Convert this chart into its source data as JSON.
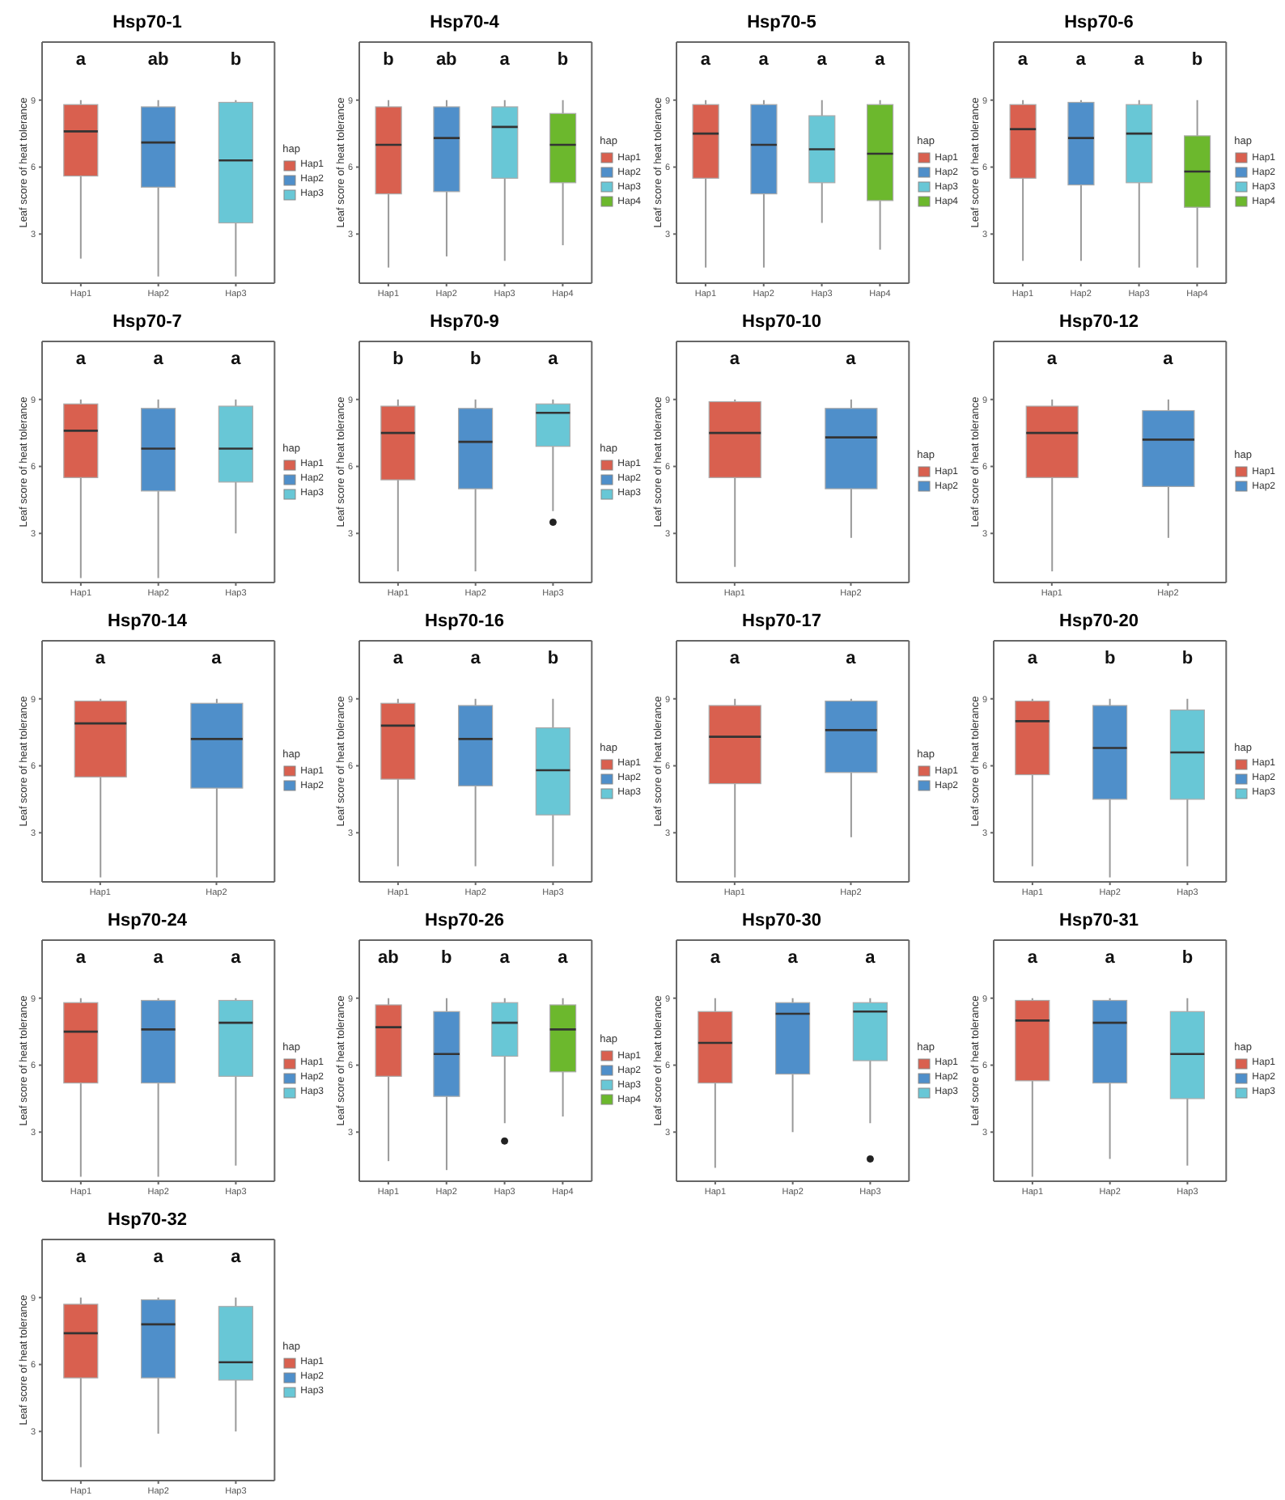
{
  "chart_data": [
    {
      "type": "box",
      "title": "Hsp70-1",
      "ylabel": "Leaf score of heat tolerance",
      "ylim": [
        0.8,
        11.6
      ],
      "yticks": [
        3,
        6,
        9
      ],
      "legend": "right",
      "legend_title": "hap",
      "categories": [
        "Hap1",
        "Hap2",
        "Hap3"
      ],
      "annotations": [
        "a",
        "ab",
        "b"
      ],
      "series": [
        {
          "name": "Hap1",
          "color": "#d9604f",
          "boxes": [
            {
              "low": 1.9,
              "q1": 5.6,
              "median": 7.6,
              "q3": 8.8,
              "high": 9
            },
            null,
            null
          ]
        },
        {
          "name": "Hap2",
          "color": "#4f8fca",
          "boxes": [
            null,
            {
              "low": 1.1,
              "q1": 5.1,
              "median": 7.1,
              "q3": 8.7,
              "high": 9
            },
            null
          ]
        },
        {
          "name": "Hap3",
          "color": "#68c7d6",
          "boxes": [
            null,
            null,
            {
              "low": 1.1,
              "q1": 3.5,
              "median": 6.3,
              "q3": 8.9,
              "high": 9
            }
          ]
        }
      ]
    },
    {
      "type": "box",
      "title": "Hsp70-4",
      "ylabel": "Leaf score of heat tolerance",
      "ylim": [
        0.8,
        11.6
      ],
      "yticks": [
        3,
        6,
        9
      ],
      "legend": "right",
      "legend_title": "hap",
      "categories": [
        "Hap1",
        "Hap2",
        "Hap3",
        "Hap4"
      ],
      "annotations": [
        "b",
        "ab",
        "a",
        "b"
      ],
      "series": [
        {
          "name": "Hap1",
          "color": "#d9604f",
          "boxes": [
            {
              "low": 1.5,
              "q1": 4.8,
              "median": 7.0,
              "q3": 8.7,
              "high": 9
            },
            null,
            null,
            null
          ]
        },
        {
          "name": "Hap2",
          "color": "#4f8fca",
          "boxes": [
            null,
            {
              "low": 2,
              "q1": 4.9,
              "median": 7.3,
              "q3": 8.7,
              "high": 9
            },
            null,
            null
          ]
        },
        {
          "name": "Hap3",
          "color": "#68c7d6",
          "boxes": [
            null,
            null,
            {
              "low": 1.8,
              "q1": 5.5,
              "median": 7.8,
              "q3": 8.7,
              "high": 9
            },
            null
          ]
        },
        {
          "name": "Hap4",
          "color": "#6cb82d",
          "boxes": [
            null,
            null,
            null,
            {
              "low": 2.5,
              "q1": 5.3,
              "median": 7.0,
              "q3": 8.4,
              "high": 9
            }
          ]
        }
      ]
    },
    {
      "type": "box",
      "title": "Hsp70-5",
      "ylabel": "Leaf score of heat tolerance",
      "ylim": [
        0.8,
        11.6
      ],
      "yticks": [
        3,
        6,
        9
      ],
      "legend": "right",
      "legend_title": "hap",
      "categories": [
        "Hap1",
        "Hap2",
        "Hap3",
        "Hap4"
      ],
      "annotations": [
        "a",
        "a",
        "a",
        "a"
      ],
      "series": [
        {
          "name": "Hap1",
          "color": "#d9604f",
          "boxes": [
            {
              "low": 1.5,
              "q1": 5.5,
              "median": 7.5,
              "q3": 8.8,
              "high": 9
            },
            null,
            null,
            null
          ]
        },
        {
          "name": "Hap2",
          "color": "#4f8fca",
          "boxes": [
            null,
            {
              "low": 1.5,
              "q1": 4.8,
              "median": 7.0,
              "q3": 8.8,
              "high": 9
            },
            null,
            null
          ]
        },
        {
          "name": "Hap3",
          "color": "#68c7d6",
          "boxes": [
            null,
            null,
            {
              "low": 3.5,
              "q1": 5.3,
              "median": 6.8,
              "q3": 8.3,
              "high": 9
            },
            null
          ]
        },
        {
          "name": "Hap4",
          "color": "#6cb82d",
          "boxes": [
            null,
            null,
            null,
            {
              "low": 2.3,
              "q1": 4.5,
              "median": 6.6,
              "q3": 8.8,
              "high": 9
            }
          ]
        }
      ]
    },
    {
      "type": "box",
      "title": "Hsp70-6",
      "ylabel": "Leaf score of heat tolerance",
      "ylim": [
        0.8,
        11.6
      ],
      "yticks": [
        3,
        6,
        9
      ],
      "legend": "right",
      "legend_title": "hap",
      "categories": [
        "Hap1",
        "Hap2",
        "Hap3",
        "Hap4"
      ],
      "annotations": [
        "a",
        "a",
        "a",
        "b"
      ],
      "series": [
        {
          "name": "Hap1",
          "color": "#d9604f",
          "boxes": [
            {
              "low": 1.8,
              "q1": 5.5,
              "median": 7.7,
              "q3": 8.8,
              "high": 9
            },
            null,
            null,
            null
          ]
        },
        {
          "name": "Hap2",
          "color": "#4f8fca",
          "boxes": [
            null,
            {
              "low": 1.8,
              "q1": 5.2,
              "median": 7.3,
              "q3": 8.9,
              "high": 9
            },
            null,
            null
          ]
        },
        {
          "name": "Hap3",
          "color": "#68c7d6",
          "boxes": [
            null,
            null,
            {
              "low": 1.5,
              "q1": 5.3,
              "median": 7.5,
              "q3": 8.8,
              "high": 9
            },
            null
          ]
        },
        {
          "name": "Hap4",
          "color": "#6cb82d",
          "boxes": [
            null,
            null,
            null,
            {
              "low": 1.5,
              "q1": 4.2,
              "median": 5.8,
              "q3": 7.4,
              "high": 9
            }
          ]
        }
      ]
    },
    {
      "type": "box",
      "title": "Hsp70-7",
      "ylabel": "Leaf score of heat tolerance",
      "ylim": [
        0.8,
        11.6
      ],
      "yticks": [
        3,
        6,
        9
      ],
      "legend": "right",
      "legend_title": "hap",
      "categories": [
        "Hap1",
        "Hap2",
        "Hap3"
      ],
      "annotations": [
        "a",
        "a",
        "a"
      ],
      "series": [
        {
          "name": "Hap1",
          "color": "#d9604f",
          "boxes": [
            {
              "low": 1,
              "q1": 5.5,
              "median": 7.6,
              "q3": 8.8,
              "high": 9
            },
            null,
            null
          ]
        },
        {
          "name": "Hap2",
          "color": "#4f8fca",
          "boxes": [
            null,
            {
              "low": 1,
              "q1": 4.9,
              "median": 6.8,
              "q3": 8.6,
              "high": 9
            },
            null
          ]
        },
        {
          "name": "Hap3",
          "color": "#68c7d6",
          "boxes": [
            null,
            null,
            {
              "low": 3,
              "q1": 5.3,
              "median": 6.8,
              "q3": 8.7,
              "high": 9
            }
          ]
        }
      ]
    },
    {
      "type": "box",
      "title": "Hsp70-9",
      "ylabel": "Leaf score of heat tolerance",
      "ylim": [
        0.8,
        11.6
      ],
      "yticks": [
        3,
        6,
        9
      ],
      "legend": "right",
      "legend_title": "hap",
      "categories": [
        "Hap1",
        "Hap2",
        "Hap3"
      ],
      "annotations": [
        "b",
        "b",
        "a"
      ],
      "series": [
        {
          "name": "Hap1",
          "color": "#d9604f",
          "boxes": [
            {
              "low": 1.3,
              "q1": 5.4,
              "median": 7.5,
              "q3": 8.7,
              "high": 9
            },
            null,
            null
          ]
        },
        {
          "name": "Hap2",
          "color": "#4f8fca",
          "boxes": [
            null,
            {
              "low": 1.3,
              "q1": 5.0,
              "median": 7.1,
              "q3": 8.6,
              "high": 9
            },
            null
          ]
        },
        {
          "name": "Hap3",
          "color": "#68c7d6",
          "boxes": [
            null,
            null,
            {
              "low": 4.0,
              "q1": 6.9,
              "median": 8.4,
              "q3": 8.8,
              "high": 9,
              "outliers": [
                3.5
              ]
            }
          ]
        }
      ]
    },
    {
      "type": "box",
      "title": "Hsp70-10",
      "ylabel": "Leaf score of heat tolerance",
      "ylim": [
        0.8,
        11.6
      ],
      "yticks": [
        3,
        6,
        9
      ],
      "legend": "right",
      "legend_title": "hap",
      "categories": [
        "Hap1",
        "Hap2"
      ],
      "annotations": [
        "a",
        "a"
      ],
      "series": [
        {
          "name": "Hap1",
          "color": "#d9604f",
          "boxes": [
            {
              "low": 1.5,
              "q1": 5.5,
              "median": 7.5,
              "q3": 8.9,
              "high": 9
            },
            null
          ]
        },
        {
          "name": "Hap2",
          "color": "#4f8fca",
          "boxes": [
            null,
            {
              "low": 2.8,
              "q1": 5.0,
              "median": 7.3,
              "q3": 8.6,
              "high": 9
            }
          ]
        }
      ]
    },
    {
      "type": "box",
      "title": "Hsp70-12",
      "ylabel": "Leaf score of heat tolerance",
      "ylim": [
        0.8,
        11.6
      ],
      "yticks": [
        3,
        6,
        9
      ],
      "legend": "right",
      "legend_title": "hap",
      "categories": [
        "Hap1",
        "Hap2"
      ],
      "annotations": [
        "a",
        "a"
      ],
      "series": [
        {
          "name": "Hap1",
          "color": "#d9604f",
          "boxes": [
            {
              "low": 1.3,
              "q1": 5.5,
              "median": 7.5,
              "q3": 8.7,
              "high": 9
            },
            null
          ]
        },
        {
          "name": "Hap2",
          "color": "#4f8fca",
          "boxes": [
            null,
            {
              "low": 2.8,
              "q1": 5.1,
              "median": 7.2,
              "q3": 8.5,
              "high": 9
            }
          ]
        }
      ]
    },
    {
      "type": "box",
      "title": "Hsp70-14",
      "ylabel": "Leaf score of heat tolerance",
      "ylim": [
        0.8,
        11.6
      ],
      "yticks": [
        3,
        6,
        9
      ],
      "legend": "right",
      "legend_title": "hap",
      "categories": [
        "Hap1",
        "Hap2"
      ],
      "annotations": [
        "a",
        "a"
      ],
      "series": [
        {
          "name": "Hap1",
          "color": "#d9604f",
          "boxes": [
            {
              "low": 1,
              "q1": 5.5,
              "median": 7.9,
              "q3": 8.9,
              "high": 9
            },
            null
          ]
        },
        {
          "name": "Hap2",
          "color": "#4f8fca",
          "boxes": [
            null,
            {
              "low": 1,
              "q1": 5.0,
              "median": 7.2,
              "q3": 8.8,
              "high": 9
            }
          ]
        }
      ]
    },
    {
      "type": "box",
      "title": "Hsp70-16",
      "ylabel": "Leaf score of heat tolerance",
      "ylim": [
        0.8,
        11.6
      ],
      "yticks": [
        3,
        6,
        9
      ],
      "legend": "right",
      "legend_title": "hap",
      "categories": [
        "Hap1",
        "Hap2",
        "Hap3"
      ],
      "annotations": [
        "a",
        "a",
        "b"
      ],
      "series": [
        {
          "name": "Hap1",
          "color": "#d9604f",
          "boxes": [
            {
              "low": 1.5,
              "q1": 5.4,
              "median": 7.8,
              "q3": 8.8,
              "high": 9
            },
            null,
            null
          ]
        },
        {
          "name": "Hap2",
          "color": "#4f8fca",
          "boxes": [
            null,
            {
              "low": 1.5,
              "q1": 5.1,
              "median": 7.2,
              "q3": 8.7,
              "high": 9
            },
            null
          ]
        },
        {
          "name": "Hap3",
          "color": "#68c7d6",
          "boxes": [
            null,
            null,
            {
              "low": 1.5,
              "q1": 3.8,
              "median": 5.8,
              "q3": 7.7,
              "high": 9
            }
          ]
        }
      ]
    },
    {
      "type": "box",
      "title": "Hsp70-17",
      "ylabel": "Leaf score of heat tolerance",
      "ylim": [
        0.8,
        11.6
      ],
      "yticks": [
        3,
        6,
        9
      ],
      "legend": "right",
      "legend_title": "hap",
      "categories": [
        "Hap1",
        "Hap2"
      ],
      "annotations": [
        "a",
        "a"
      ],
      "series": [
        {
          "name": "Hap1",
          "color": "#d9604f",
          "boxes": [
            {
              "low": 1,
              "q1": 5.2,
              "median": 7.3,
              "q3": 8.7,
              "high": 9
            },
            null
          ]
        },
        {
          "name": "Hap2",
          "color": "#4f8fca",
          "boxes": [
            null,
            {
              "low": 2.8,
              "q1": 5.7,
              "median": 7.6,
              "q3": 8.9,
              "high": 9
            }
          ]
        }
      ]
    },
    {
      "type": "box",
      "title": "Hsp70-20",
      "ylabel": "Leaf score of heat tolerance",
      "ylim": [
        0.8,
        11.6
      ],
      "yticks": [
        3,
        6,
        9
      ],
      "legend": "right",
      "legend_title": "hap",
      "categories": [
        "Hap1",
        "Hap2",
        "Hap3"
      ],
      "annotations": [
        "a",
        "b",
        "b"
      ],
      "series": [
        {
          "name": "Hap1",
          "color": "#d9604f",
          "boxes": [
            {
              "low": 1.5,
              "q1": 5.6,
              "median": 8.0,
              "q3": 8.9,
              "high": 9
            },
            null,
            null
          ]
        },
        {
          "name": "Hap2",
          "color": "#4f8fca",
          "boxes": [
            null,
            {
              "low": 1,
              "q1": 4.5,
              "median": 6.8,
              "q3": 8.7,
              "high": 9
            },
            null
          ]
        },
        {
          "name": "Hap3",
          "color": "#68c7d6",
          "boxes": [
            null,
            null,
            {
              "low": 1.5,
              "q1": 4.5,
              "median": 6.6,
              "q3": 8.5,
              "high": 9
            }
          ]
        }
      ]
    },
    {
      "type": "box",
      "title": "Hsp70-24",
      "ylabel": "Leaf score of heat tolerance",
      "ylim": [
        0.8,
        11.6
      ],
      "yticks": [
        3,
        6,
        9
      ],
      "legend": "right",
      "legend_title": "hap",
      "categories": [
        "Hap1",
        "Hap2",
        "Hap3"
      ],
      "annotations": [
        "a",
        "a",
        "a"
      ],
      "series": [
        {
          "name": "Hap1",
          "color": "#d9604f",
          "boxes": [
            {
              "low": 1,
              "q1": 5.2,
              "median": 7.5,
              "q3": 8.8,
              "high": 9
            },
            null,
            null
          ]
        },
        {
          "name": "Hap2",
          "color": "#4f8fca",
          "boxes": [
            null,
            {
              "low": 1,
              "q1": 5.2,
              "median": 7.6,
              "q3": 8.9,
              "high": 9
            },
            null
          ]
        },
        {
          "name": "Hap3",
          "color": "#68c7d6",
          "boxes": [
            null,
            null,
            {
              "low": 1.5,
              "q1": 5.5,
              "median": 7.9,
              "q3": 8.9,
              "high": 9
            }
          ]
        }
      ]
    },
    {
      "type": "box",
      "title": "Hsp70-26",
      "ylabel": "Leaf score of heat tolerance",
      "ylim": [
        0.8,
        11.6
      ],
      "yticks": [
        3,
        6,
        9
      ],
      "legend": "right",
      "legend_title": "hap",
      "categories": [
        "Hap1",
        "Hap2",
        "Hap3",
        "Hap4"
      ],
      "annotations": [
        "ab",
        "b",
        "a",
        "a"
      ],
      "series": [
        {
          "name": "Hap1",
          "color": "#d9604f",
          "boxes": [
            {
              "low": 1.7,
              "q1": 5.5,
              "median": 7.7,
              "q3": 8.7,
              "high": 9
            },
            null,
            null,
            null
          ]
        },
        {
          "name": "Hap2",
          "color": "#4f8fca",
          "boxes": [
            null,
            {
              "low": 1.3,
              "q1": 4.6,
              "median": 6.5,
              "q3": 8.4,
              "high": 9
            },
            null,
            null
          ]
        },
        {
          "name": "Hap3",
          "color": "#68c7d6",
          "boxes": [
            null,
            null,
            {
              "low": 3.4,
              "q1": 6.4,
              "median": 7.9,
              "q3": 8.8,
              "high": 9,
              "outliers": [
                2.6
              ]
            },
            null
          ]
        },
        {
          "name": "Hap4",
          "color": "#6cb82d",
          "boxes": [
            null,
            null,
            null,
            {
              "low": 3.7,
              "q1": 5.7,
              "median": 7.6,
              "q3": 8.7,
              "high": 9
            }
          ]
        }
      ]
    },
    {
      "type": "box",
      "title": "Hsp70-30",
      "ylabel": "Leaf score of heat tolerance",
      "ylim": [
        0.8,
        11.6
      ],
      "yticks": [
        3,
        6,
        9
      ],
      "legend": "right",
      "legend_title": "hap",
      "categories": [
        "Hap1",
        "Hap2",
        "Hap3"
      ],
      "annotations": [
        "a",
        "a",
        "a"
      ],
      "series": [
        {
          "name": "Hap1",
          "color": "#d9604f",
          "boxes": [
            {
              "low": 1.4,
              "q1": 5.2,
              "median": 7.0,
              "q3": 8.4,
              "high": 9
            },
            null,
            null
          ]
        },
        {
          "name": "Hap2",
          "color": "#4f8fca",
          "boxes": [
            null,
            {
              "low": 3.0,
              "q1": 5.6,
              "median": 8.3,
              "q3": 8.8,
              "high": 9
            },
            null
          ]
        },
        {
          "name": "Hap3",
          "color": "#68c7d6",
          "boxes": [
            null,
            null,
            {
              "low": 3.4,
              "q1": 6.2,
              "median": 8.4,
              "q3": 8.8,
              "high": 9,
              "outliers": [
                1.8
              ]
            }
          ]
        }
      ]
    },
    {
      "type": "box",
      "title": "Hsp70-31",
      "ylabel": "Leaf score of heat tolerance",
      "ylim": [
        0.8,
        11.6
      ],
      "yticks": [
        3,
        6,
        9
      ],
      "legend": "right",
      "legend_title": "hap",
      "categories": [
        "Hap1",
        "Hap2",
        "Hap3"
      ],
      "annotations": [
        "a",
        "a",
        "b"
      ],
      "series": [
        {
          "name": "Hap1",
          "color": "#d9604f",
          "boxes": [
            {
              "low": 1,
              "q1": 5.3,
              "median": 8.0,
              "q3": 8.9,
              "high": 9
            },
            null,
            null
          ]
        },
        {
          "name": "Hap2",
          "color": "#4f8fca",
          "boxes": [
            null,
            {
              "low": 1.8,
              "q1": 5.2,
              "median": 7.9,
              "q3": 8.9,
              "high": 9
            },
            null
          ]
        },
        {
          "name": "Hap3",
          "color": "#68c7d6",
          "boxes": [
            null,
            null,
            {
              "low": 1.5,
              "q1": 4.5,
              "median": 6.5,
              "q3": 8.4,
              "high": 9
            }
          ]
        }
      ]
    },
    {
      "type": "box",
      "title": "Hsp70-32",
      "ylabel": "Leaf score of heat tolerance",
      "ylim": [
        0.8,
        11.6
      ],
      "yticks": [
        3,
        6,
        9
      ],
      "legend": "right",
      "legend_title": "hap",
      "categories": [
        "Hap1",
        "Hap2",
        "Hap3"
      ],
      "annotations": [
        "a",
        "a",
        "a"
      ],
      "series": [
        {
          "name": "Hap1",
          "color": "#d9604f",
          "boxes": [
            {
              "low": 1.4,
              "q1": 5.4,
              "median": 7.4,
              "q3": 8.7,
              "high": 9
            },
            null,
            null
          ]
        },
        {
          "name": "Hap2",
          "color": "#4f8fca",
          "boxes": [
            null,
            {
              "low": 2.9,
              "q1": 5.4,
              "median": 7.8,
              "q3": 8.9,
              "high": 9
            },
            null
          ]
        },
        {
          "name": "Hap3",
          "color": "#68c7d6",
          "boxes": [
            null,
            null,
            {
              "low": 3.0,
              "q1": 5.3,
              "median": 6.1,
              "q3": 8.6,
              "high": 9
            }
          ]
        }
      ]
    }
  ]
}
